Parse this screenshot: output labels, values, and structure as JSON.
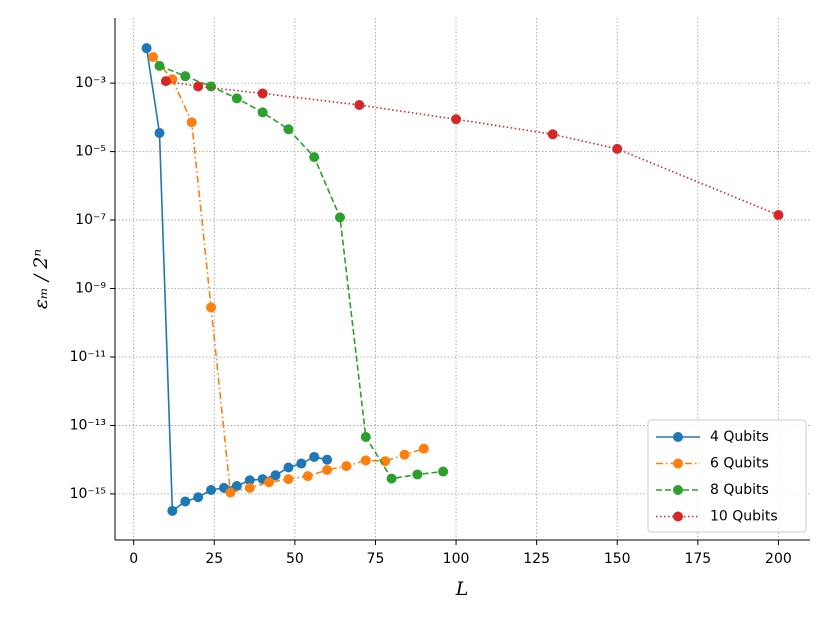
{
  "chart_data": {
    "type": "line",
    "log_y": true,
    "grid": true,
    "legend_position": "lower right",
    "xlabel": "L",
    "ylabel": "εₘ / 2ⁿ",
    "xlim": [
      -5.8,
      209.8
    ],
    "xticks": [
      0,
      25,
      50,
      75,
      100,
      125,
      150,
      175,
      200
    ],
    "ylim": [
      4.5e-17,
      0.08
    ],
    "yticks": [
      {
        "value": 0.001,
        "label": "10⁻³"
      },
      {
        "value": 1e-05,
        "label": "10⁻⁵"
      },
      {
        "value": 1e-07,
        "label": "10⁻⁷"
      },
      {
        "value": 1e-09,
        "label": "10⁻⁹"
      },
      {
        "value": 1e-11,
        "label": "10⁻¹¹"
      },
      {
        "value": 1e-13,
        "label": "10⁻¹³"
      },
      {
        "value": 1e-15,
        "label": "10⁻¹⁵"
      }
    ],
    "series": [
      {
        "name": "4 Qubits",
        "color": "#1f77b4",
        "linestyle": "solid",
        "x": [
          4,
          8,
          12,
          16,
          20,
          24,
          28,
          32,
          36,
          40,
          44,
          48,
          52,
          56,
          60
        ],
        "values": [
          0.0105,
          3.5e-05,
          3.2e-16,
          6e-16,
          8e-16,
          1.3e-15,
          1.5e-15,
          1.7e-15,
          2.5e-15,
          2.7e-15,
          3.5e-15,
          5.9e-15,
          7.7e-15,
          1.2e-14,
          1e-14
        ]
      },
      {
        "name": "6 Qubits",
        "color": "#ff7f0e",
        "linestyle": "dashdot",
        "x": [
          6,
          12,
          18,
          24,
          30,
          36,
          42,
          48,
          54,
          60,
          66,
          72,
          78,
          84,
          90
        ],
        "values": [
          0.0058,
          0.0013,
          7.2e-05,
          2.8e-10,
          1.1e-15,
          1.5e-15,
          2.2e-15,
          2.7e-15,
          3.3e-15,
          5e-15,
          6.5e-15,
          9.5e-15,
          9e-15,
          1.4e-14,
          2.1e-14
        ]
      },
      {
        "name": "8 Qubits",
        "color": "#2ca02c",
        "linestyle": "dashed",
        "x": [
          8,
          16,
          24,
          32,
          40,
          48,
          56,
          64,
          72,
          80,
          88,
          96
        ],
        "values": [
          0.0032,
          0.0016,
          0.0008,
          0.00036,
          0.00014,
          4.5e-05,
          6.9e-06,
          1.2e-07,
          4.6e-14,
          2.8e-15,
          3.7e-15,
          4.5e-15
        ]
      },
      {
        "name": "10 Qubits",
        "color": "#d62728",
        "linestyle": "dotted",
        "x": [
          10,
          20,
          40,
          70,
          100,
          130,
          150,
          200
        ],
        "values": [
          0.00115,
          0.0008,
          0.0005,
          0.00023,
          8.8e-05,
          3.2e-05,
          1.2e-05,
          1.4e-07
        ]
      }
    ]
  }
}
